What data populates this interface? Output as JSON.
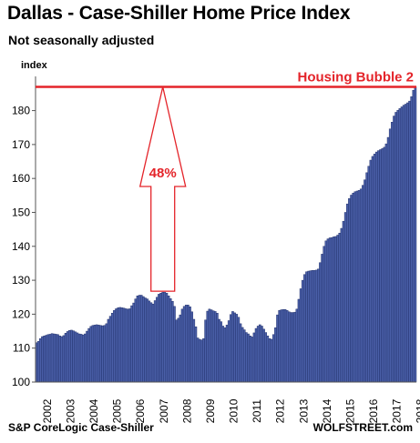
{
  "header": {
    "title": "Dallas - Case-Shiller Home Price Index",
    "subtitle": "Not seasonally adjusted"
  },
  "footer": {
    "source": "S&P CoreLogic Case-Shiller",
    "brand": "WOLFSTREET.com"
  },
  "colors": {
    "bar_fill": "#4a5fa8",
    "bar_stroke": "#1f2e68",
    "accent_red": "#e4242a"
  },
  "chart_data": {
    "type": "bar",
    "title": "Dallas - Case-Shiller Home Price Index",
    "subtitle": "Not seasonally adjusted",
    "ylabel": "index",
    "xlabel": "",
    "ylim": [
      100,
      189
    ],
    "yticks": [
      100,
      110,
      120,
      130,
      140,
      150,
      160,
      170,
      180
    ],
    "grid": false,
    "x_tick_labels": [
      "2002",
      "2003",
      "2004",
      "2005",
      "2006",
      "2007",
      "2008",
      "2009",
      "2010",
      "2011",
      "2012",
      "2013",
      "2014",
      "2015",
      "2016",
      "2017",
      "2018"
    ],
    "x_start": "2002-01",
    "frequency": "monthly",
    "values": [
      111.6,
      112,
      112.8,
      113.4,
      113.6,
      113.8,
      114,
      114.1,
      114.3,
      114.2,
      114.1,
      114,
      113.6,
      113.4,
      113.7,
      114.4,
      114.9,
      115.2,
      115.3,
      115.1,
      114.8,
      114.5,
      114.2,
      114.1,
      113.9,
      114.2,
      115,
      115.8,
      116.4,
      116.7,
      116.8,
      116.9,
      116.8,
      116.7,
      116.6,
      116.7,
      117.2,
      118.5,
      119.4,
      120.3,
      121.1,
      121.6,
      121.9,
      122,
      121.9,
      121.8,
      121.6,
      121.5,
      121.6,
      122.5,
      123.3,
      124.5,
      125.4,
      125.6,
      125.6,
      125.2,
      124.8,
      124.5,
      123.9,
      123.4,
      123,
      124,
      125,
      125.9,
      126.2,
      126.5,
      126.5,
      126.2,
      125.4,
      124.6,
      123.8,
      122.3,
      118.3,
      118.8,
      119.8,
      121.5,
      122.3,
      122.7,
      122.7,
      122.2,
      120.7,
      118.5,
      116.3,
      113,
      112.6,
      112.4,
      112.8,
      118.3,
      120.9,
      121.5,
      121.3,
      121,
      120.8,
      120.3,
      118.5,
      117.8,
      116.5,
      116,
      116.8,
      118.1,
      119.9,
      120.8,
      120.4,
      120,
      119.1,
      117.2,
      116.1,
      115.4,
      114.6,
      114.2,
      113.6,
      113.3,
      114.5,
      115.8,
      116.5,
      116.9,
      116.5,
      115.6,
      114.6,
      113.6,
      112.8,
      112.6,
      114,
      116,
      119.8,
      121.1,
      121.3,
      121.4,
      121.4,
      121.1,
      120.7,
      120.5,
      120.5,
      120.6,
      121.5,
      124.4,
      127.5,
      130,
      131.7,
      132.5,
      132.7,
      132.8,
      132.9,
      132.9,
      133,
      133.3,
      135.2,
      137.7,
      140,
      141.6,
      142.2,
      142.5,
      142.6,
      142.8,
      142.9,
      143.3,
      143.9,
      145.3,
      147.4,
      150,
      152.5,
      154.1,
      155.1,
      155.7,
      156.1,
      156.3,
      156.5,
      156.9,
      158,
      159.6,
      161.7,
      163.6,
      165.4,
      166.5,
      167.2,
      167.8,
      168.2,
      168.5,
      168.8,
      169.2,
      170.2,
      172.1,
      174.6,
      176.6,
      178.4,
      179.5,
      180.1,
      180.6,
      181.1,
      181.6,
      181.9,
      182.3,
      182.8,
      184.1,
      186,
      187
    ],
    "reference_line": {
      "value": 187,
      "label": "Housing Bubble 2"
    },
    "annotations": [
      {
        "type": "arrow-up",
        "text": "48%",
        "from_value": 126.5,
        "to_value": 187
      }
    ]
  }
}
